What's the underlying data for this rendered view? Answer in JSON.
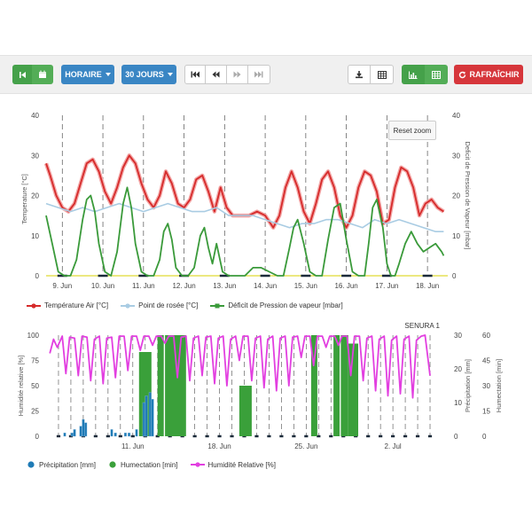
{
  "toolbar": {
    "granularity_label": "HORAIRE",
    "period_label": "30 JOURS",
    "refresh_label": "RAFRAÎCHIR"
  },
  "colors": {
    "temperature": "#d62b2b",
    "dew_point": "#a9cce3",
    "vpd": "#3a9a3a",
    "precipitation": "#1f7bb6",
    "humectation": "#3aa03a",
    "humidity": "#e23fe0",
    "grid": "#666666"
  },
  "chart_data": [
    {
      "type": "line",
      "reset_zoom_label": "Reset zoom",
      "xlabel": "",
      "ylabel_left": "Temperature [°C]",
      "ylabel_right": "Deficit de Pression de Vapeur [mbar]",
      "ylim_left": [
        0,
        40
      ],
      "ylim_right": [
        0,
        40
      ],
      "yticks_left": [
        "0",
        "10",
        "20",
        "30",
        "40"
      ],
      "yticks_right": [
        "0",
        "10",
        "20",
        "30",
        "40"
      ],
      "xlim": [
        8.6,
        18.5
      ],
      "xticks": [
        {
          "x": 9,
          "label": "9. Jun"
        },
        {
          "x": 10,
          "label": "10. Jun"
        },
        {
          "x": 11,
          "label": "11. Jun"
        },
        {
          "x": 12,
          "label": "12. Jun"
        },
        {
          "x": 13,
          "label": "13. Jun"
        },
        {
          "x": 14,
          "label": "14. Jun"
        },
        {
          "x": 15,
          "label": "15. Jun"
        },
        {
          "x": 16,
          "label": "16. Jun"
        },
        {
          "x": 17,
          "label": "17. Jun"
        },
        {
          "x": 18,
          "label": "18. Jun"
        }
      ],
      "grid": "dashed vertical lines at midnight",
      "legend_position": "bottom",
      "series": [
        {
          "name": "Température Air [°C]",
          "axis": "left",
          "x": [
            8.6,
            8.7,
            8.85,
            9.0,
            9.15,
            9.3,
            9.45,
            9.6,
            9.75,
            9.9,
            10.05,
            10.2,
            10.35,
            10.5,
            10.65,
            10.8,
            10.95,
            11.1,
            11.25,
            11.4,
            11.55,
            11.7,
            11.85,
            12.0,
            12.15,
            12.3,
            12.45,
            12.6,
            12.75,
            12.9,
            13.05,
            13.2,
            13.4,
            13.6,
            13.8,
            14.0,
            14.2,
            14.35,
            14.5,
            14.65,
            14.8,
            14.95,
            15.1,
            15.25,
            15.4,
            15.55,
            15.7,
            15.85,
            16.0,
            16.15,
            16.3,
            16.45,
            16.6,
            16.75,
            16.9,
            17.05,
            17.2,
            17.35,
            17.5,
            17.65,
            17.8,
            17.95,
            18.1,
            18.25,
            18.4
          ],
          "values": [
            28,
            25,
            20,
            17,
            16,
            18,
            23,
            28,
            29,
            26,
            21,
            18,
            22,
            27,
            30,
            28,
            23,
            19,
            17,
            20,
            26,
            23,
            18,
            17,
            19,
            24,
            25,
            21,
            16,
            22,
            17,
            15,
            15,
            15,
            16,
            15,
            12,
            15,
            22,
            26,
            22,
            16,
            13,
            18,
            24,
            26,
            22,
            15,
            12,
            15,
            22,
            26,
            25,
            21,
            13,
            14,
            22,
            27,
            26,
            22,
            15,
            18,
            19,
            17,
            16
          ]
        },
        {
          "name": "Point de rosée [°C]",
          "axis": "left",
          "x": [
            8.6,
            8.9,
            9.2,
            9.5,
            9.8,
            10.1,
            10.4,
            10.7,
            11.0,
            11.3,
            11.6,
            11.9,
            12.2,
            12.5,
            12.8,
            13.1,
            13.4,
            13.7,
            14.0,
            14.3,
            14.6,
            14.9,
            15.2,
            15.5,
            15.8,
            16.1,
            16.4,
            16.7,
            17.0,
            17.3,
            17.6,
            17.9,
            18.2,
            18.4
          ],
          "values": [
            18,
            17,
            16,
            17,
            16,
            17,
            18,
            17,
            16,
            17,
            18,
            17,
            16,
            16,
            17,
            15,
            15,
            15,
            14,
            13,
            12,
            13,
            13,
            14,
            14,
            13,
            12,
            14,
            13,
            14,
            13,
            12,
            11,
            11
          ]
        },
        {
          "name": "Déficit de Pression de vapeur [mbar]",
          "axis": "right",
          "x": [
            8.6,
            8.75,
            8.9,
            9.05,
            9.2,
            9.35,
            9.5,
            9.6,
            9.7,
            9.8,
            9.9,
            10.05,
            10.2,
            10.35,
            10.5,
            10.6,
            10.7,
            10.8,
            10.95,
            11.1,
            11.25,
            11.4,
            11.5,
            11.6,
            11.7,
            11.8,
            11.95,
            12.1,
            12.25,
            12.4,
            12.5,
            12.6,
            12.7,
            12.8,
            12.95,
            13.1,
            13.3,
            13.5,
            13.7,
            13.9,
            14.1,
            14.3,
            14.45,
            14.6,
            14.7,
            14.8,
            14.95,
            15.1,
            15.25,
            15.4,
            15.55,
            15.7,
            15.85,
            16.0,
            16.15,
            16.3,
            16.45,
            16.55,
            16.65,
            16.75,
            16.9,
            17.0,
            17.1,
            17.2,
            17.3,
            17.45,
            17.6,
            17.75,
            17.9,
            18.05,
            18.2,
            18.35,
            18.4
          ],
          "values": [
            15,
            8,
            1,
            0,
            0,
            4,
            14,
            19,
            20,
            16,
            8,
            1,
            0,
            6,
            18,
            22,
            17,
            8,
            1,
            0,
            0,
            4,
            11,
            13,
            9,
            2,
            0,
            0,
            2,
            10,
            12,
            7,
            3,
            8,
            1,
            0,
            0,
            0,
            2,
            2,
            1,
            0,
            0,
            7,
            12,
            14,
            8,
            1,
            0,
            0,
            9,
            17,
            18,
            9,
            1,
            0,
            0,
            8,
            17,
            19,
            12,
            3,
            0,
            0,
            3,
            8,
            11,
            8,
            6,
            7,
            8,
            6,
            5
          ]
        }
      ]
    },
    {
      "type": "line",
      "title": "SENURA 1",
      "xlabel": "",
      "ylabel_left": "Humidité relative [%]",
      "ylabel_right": "Précipitation [mm]",
      "ylabel_right2": "Humectation [min]",
      "ylim_left": [
        0,
        100
      ],
      "ylim_right": [
        0,
        30
      ],
      "ylim_right2": [
        0,
        60
      ],
      "yticks_left": [
        "0",
        "25",
        "50",
        "75",
        "100"
      ],
      "yticks_right": [
        "0",
        "10",
        "20",
        "30"
      ],
      "yticks_right2": [
        "0",
        "15",
        "30",
        "45",
        "60"
      ],
      "xlim": [
        4,
        35.5
      ],
      "xticks": [
        {
          "x": 11,
          "label": "11. Jun"
        },
        {
          "x": 18,
          "label": "18. Jun"
        },
        {
          "x": 25,
          "label": "25. Jun"
        },
        {
          "x": 32,
          "label": "2. Jul"
        }
      ],
      "grid": "dashed vertical lines at midnight",
      "legend_position": "bottom",
      "series": [
        {
          "name": "Précipitation [mm]",
          "kind": "bar",
          "axis": "right",
          "x": [
            5.5,
            6.1,
            6.3,
            6.8,
            7.0,
            7.2,
            9.3,
            9.6,
            10.4,
            10.7,
            11.3,
            11.9,
            12.1,
            12.4,
            12.6
          ],
          "values": [
            1,
            1,
            2,
            3,
            5,
            4,
            2,
            1,
            1,
            1,
            2,
            10,
            12,
            13,
            11
          ]
        },
        {
          "name": "Humectation [min]",
          "kind": "bar",
          "axis": "right2",
          "x_start": [
            11.5,
            13.0,
            13.6,
            19.6,
            25.4,
            27.2,
            27.8,
            28.4
          ],
          "x_end": [
            12.5,
            13.5,
            15.3,
            20.6,
            25.9,
            27.7,
            28.4,
            29.2
          ],
          "values": [
            50,
            60,
            60,
            30,
            60,
            60,
            60,
            55
          ]
        },
        {
          "name": "Humidité Relative [%]",
          "kind": "line",
          "axis": "left",
          "x": [
            4.3,
            4.6,
            4.9,
            5.3,
            5.6,
            5.9,
            6.3,
            6.6,
            6.9,
            7.3,
            7.6,
            7.9,
            8.3,
            8.6,
            8.9,
            9.3,
            9.6,
            9.9,
            10.3,
            10.6,
            10.9,
            11.3,
            11.6,
            11.9,
            12.3,
            12.6,
            12.9,
            13.3,
            13.6,
            13.9,
            14.3,
            14.6,
            14.9,
            15.3,
            15.6,
            15.9,
            16.3,
            16.6,
            16.9,
            17.3,
            17.6,
            17.9,
            18.3,
            18.6,
            18.9,
            19.3,
            19.6,
            19.9,
            20.3,
            20.6,
            20.9,
            21.3,
            21.6,
            21.9,
            22.3,
            22.6,
            22.9,
            23.3,
            23.6,
            23.9,
            24.3,
            24.6,
            24.9,
            25.3,
            25.6,
            25.9,
            26.3,
            26.6,
            26.9,
            27.3,
            27.6,
            27.9,
            28.3,
            28.6,
            28.9,
            29.3,
            29.6,
            29.9,
            30.3,
            30.6,
            30.9,
            31.3,
            31.6,
            31.9,
            32.3,
            32.6,
            32.9,
            33.3,
            33.6,
            33.9,
            34.3,
            34.6,
            35.0
          ],
          "values": [
            82,
            96,
            88,
            99,
            62,
            98,
            97,
            60,
            99,
            98,
            55,
            96,
            99,
            52,
            97,
            98,
            58,
            99,
            99,
            65,
            99,
            99,
            85,
            99,
            99,
            90,
            99,
            99,
            92,
            99,
            99,
            58,
            98,
            99,
            55,
            97,
            99,
            60,
            98,
            99,
            52,
            97,
            99,
            50,
            96,
            99,
            75,
            99,
            99,
            55,
            97,
            99,
            48,
            96,
            99,
            45,
            97,
            99,
            50,
            98,
            99,
            78,
            99,
            99,
            70,
            99,
            99,
            88,
            99,
            99,
            90,
            99,
            99,
            60,
            99,
            99,
            55,
            97,
            99,
            45,
            96,
            99,
            40,
            95,
            99,
            42,
            96,
            99,
            38,
            95,
            99,
            100,
            60
          ]
        }
      ]
    }
  ]
}
